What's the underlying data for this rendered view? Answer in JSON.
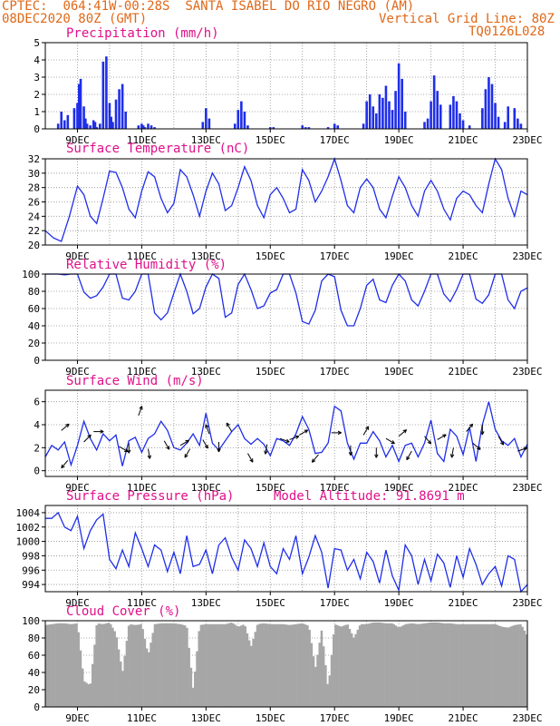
{
  "header": {
    "line1_left": "CPTEC:",
    "coords": "064:41W-00:28S",
    "station": "SANTA ISABEL DO RIO NEGRO (AM)",
    "date": "08DEC2020 80Z (GMT)",
    "grid_note": "Vertical Grid Line: 80Z",
    "code": "TQ0126L028"
  },
  "colors": {
    "header": "#e06818",
    "panel_title": "#e0108a",
    "series": "#1f2ee8",
    "cloud": "#a6a6a6",
    "grid": "#909090"
  },
  "x_axis": {
    "days_start": 8,
    "days_end": 23,
    "tick_labels": [
      "9DEC",
      "11DEC",
      "13DEC",
      "15DEC",
      "17DEC",
      "19DEC",
      "21DEC",
      "23DEC"
    ]
  },
  "panels": {
    "precip": {
      "title": "Precipitation (mm/h)"
    },
    "temp": {
      "title": "Surface Temperature (nC)"
    },
    "rh": {
      "title": "Relative Humidity (%)"
    },
    "wind": {
      "title": "Surface Wind (m/s)"
    },
    "pres": {
      "title": "Surface Pressure (hPa)",
      "extra": "Model Altitude: 91.8691 m"
    },
    "cloud": {
      "title": "Cloud Cover (%)"
    }
  },
  "chart_data": [
    {
      "name": "precip",
      "type": "bar",
      "title": "Precipitation (mm/h)",
      "ylim": [
        0,
        5
      ],
      "yticks": [
        0,
        1,
        2,
        3,
        4,
        5
      ],
      "grid": true,
      "x": [
        8.4,
        8.5,
        8.6,
        8.7,
        8.9,
        9.0,
        9.05,
        9.1,
        9.2,
        9.25,
        9.3,
        9.4,
        9.5,
        9.55,
        9.6,
        9.7,
        9.8,
        9.9,
        10.0,
        10.05,
        10.1,
        10.2,
        10.3,
        10.4,
        10.5,
        10.9,
        11.0,
        11.05,
        11.1,
        11.2,
        11.3,
        11.4,
        12.9,
        13.0,
        13.1,
        13.9,
        14.0,
        14.1,
        14.2,
        14.3,
        15.0,
        15.1,
        16.0,
        16.1,
        16.2,
        16.8,
        17.0,
        17.1,
        17.9,
        18.0,
        18.1,
        18.2,
        18.3,
        18.4,
        18.5,
        18.6,
        18.7,
        18.8,
        18.9,
        19.0,
        19.1,
        19.2,
        19.8,
        19.9,
        20.0,
        20.1,
        20.2,
        20.3,
        20.6,
        20.7,
        20.8,
        20.9,
        21.0,
        21.2,
        21.6,
        21.7,
        21.8,
        21.9,
        22.0,
        22.1,
        22.3,
        22.4,
        22.6,
        22.7,
        22.8
      ],
      "y": [
        0.3,
        1.0,
        0.5,
        0.8,
        1.2,
        1.5,
        2.6,
        2.9,
        1.3,
        0.6,
        0.3,
        0.2,
        0.5,
        0.4,
        0.1,
        0.3,
        3.9,
        4.2,
        1.5,
        0.7,
        0.4,
        1.7,
        2.3,
        2.6,
        1.0,
        0.2,
        0.3,
        0.2,
        0.1,
        0.3,
        0.2,
        0.1,
        0.4,
        1.2,
        0.6,
        0.3,
        1.1,
        1.6,
        1.0,
        0.2,
        0.1,
        0.1,
        0.2,
        0.1,
        0.1,
        0.1,
        0.3,
        0.2,
        0.3,
        1.6,
        2.0,
        1.3,
        0.9,
        2.0,
        1.8,
        2.5,
        1.6,
        1.1,
        2.2,
        3.8,
        2.9,
        1.0,
        0.4,
        0.6,
        1.6,
        3.1,
        2.2,
        1.4,
        1.4,
        1.9,
        1.6,
        0.9,
        0.5,
        0.2,
        1.2,
        2.3,
        3.0,
        2.6,
        1.5,
        0.7,
        0.4,
        1.3,
        1.2,
        0.6,
        0.3
      ]
    },
    {
      "name": "temp",
      "type": "line",
      "title": "Surface Temperature (nC)",
      "ylim": [
        20,
        32
      ],
      "yticks": [
        20,
        22,
        24,
        26,
        28,
        30,
        32
      ],
      "grid": true,
      "x": [
        8.0,
        8.25,
        8.5,
        8.75,
        9.0,
        9.2,
        9.4,
        9.6,
        9.8,
        10.0,
        10.2,
        10.4,
        10.6,
        10.8,
        11.0,
        11.2,
        11.4,
        11.6,
        11.8,
        12.0,
        12.2,
        12.4,
        12.6,
        12.8,
        13.0,
        13.2,
        13.4,
        13.6,
        13.8,
        14.0,
        14.2,
        14.4,
        14.6,
        14.8,
        15.0,
        15.2,
        15.4,
        15.6,
        15.8,
        16.0,
        16.2,
        16.4,
        16.6,
        16.8,
        17.0,
        17.2,
        17.4,
        17.6,
        17.8,
        18.0,
        18.2,
        18.4,
        18.6,
        18.8,
        19.0,
        19.2,
        19.4,
        19.6,
        19.8,
        20.0,
        20.2,
        20.4,
        20.6,
        20.8,
        21.0,
        21.2,
        21.4,
        21.6,
        21.8,
        22.0,
        22.2,
        22.4,
        22.6,
        22.8,
        23.0
      ],
      "y": [
        22.0,
        21.0,
        20.5,
        24.0,
        28.2,
        27.0,
        24.0,
        23.0,
        26.5,
        30.3,
        30.1,
        28.0,
        25.0,
        23.8,
        27.5,
        30.2,
        29.5,
        26.5,
        24.5,
        25.8,
        30.5,
        29.5,
        27.0,
        24.0,
        27.5,
        30.0,
        28.5,
        24.8,
        25.5,
        28.0,
        30.9,
        29.0,
        25.5,
        23.8,
        27.0,
        28.0,
        26.5,
        24.5,
        25.0,
        30.5,
        29.0,
        26.0,
        27.5,
        29.5,
        32.0,
        29.0,
        25.5,
        24.5,
        28.0,
        29.2,
        28.0,
        25.0,
        23.8,
        26.8,
        29.5,
        28.0,
        25.5,
        24.0,
        27.5,
        29.0,
        27.5,
        25.0,
        23.5,
        26.5,
        27.5,
        27.0,
        25.5,
        24.5,
        28.5,
        32.0,
        30.5,
        26.5,
        24.0,
        27.5,
        27.0
      ]
    },
    {
      "name": "rh",
      "type": "line",
      "title": "Relative Humidity (%)",
      "ylim": [
        0,
        100
      ],
      "yticks": [
        0,
        20,
        40,
        60,
        80,
        100
      ],
      "grid": true,
      "x": [
        8.0,
        8.2,
        8.4,
        8.6,
        8.8,
        9.0,
        9.2,
        9.4,
        9.6,
        9.8,
        10.0,
        10.2,
        10.4,
        10.6,
        10.8,
        11.0,
        11.2,
        11.4,
        11.6,
        11.8,
        12.0,
        12.2,
        12.4,
        12.6,
        12.8,
        13.0,
        13.2,
        13.4,
        13.6,
        13.8,
        14.0,
        14.2,
        14.4,
        14.6,
        14.8,
        15.0,
        15.2,
        15.4,
        15.6,
        15.8,
        16.0,
        16.2,
        16.4,
        16.6,
        16.8,
        17.0,
        17.2,
        17.4,
        17.6,
        17.8,
        18.0,
        18.2,
        18.4,
        18.6,
        18.8,
        19.0,
        19.2,
        19.4,
        19.6,
        19.8,
        20.0,
        20.2,
        20.4,
        20.6,
        20.8,
        21.0,
        21.2,
        21.4,
        21.6,
        21.8,
        22.0,
        22.2,
        22.4,
        22.6,
        22.8,
        23.0
      ],
      "y": [
        100,
        100,
        100,
        99,
        100,
        100,
        79,
        72,
        75,
        85,
        100,
        100,
        72,
        70,
        80,
        100,
        100,
        55,
        47,
        55,
        78,
        100,
        80,
        54,
        60,
        85,
        100,
        95,
        50,
        55,
        88,
        100,
        82,
        60,
        63,
        78,
        82,
        100,
        100,
        78,
        45,
        42,
        58,
        92,
        100,
        97,
        58,
        40,
        40,
        60,
        87,
        94,
        70,
        67,
        87,
        100,
        92,
        70,
        63,
        80,
        100,
        100,
        77,
        68,
        82,
        100,
        100,
        71,
        66,
        76,
        100,
        100,
        70,
        60,
        80,
        84
      ]
    },
    {
      "name": "wind",
      "type": "line",
      "title": "Surface Wind (m/s)",
      "ylim": [
        -0.5,
        7
      ],
      "yticks": [
        0,
        2,
        4,
        6
      ],
      "grid": true,
      "x": [
        8.0,
        8.2,
        8.4,
        8.6,
        8.8,
        9.0,
        9.2,
        9.4,
        9.6,
        9.8,
        10.0,
        10.2,
        10.4,
        10.6,
        10.8,
        11.0,
        11.2,
        11.4,
        11.6,
        11.8,
        12.0,
        12.2,
        12.4,
        12.6,
        12.8,
        13.0,
        13.2,
        13.4,
        13.6,
        13.8,
        14.0,
        14.2,
        14.4,
        14.6,
        14.8,
        15.0,
        15.2,
        15.4,
        15.6,
        15.8,
        16.0,
        16.2,
        16.4,
        16.6,
        16.8,
        17.0,
        17.2,
        17.4,
        17.6,
        17.8,
        18.0,
        18.2,
        18.4,
        18.6,
        18.8,
        19.0,
        19.2,
        19.4,
        19.6,
        19.8,
        20.0,
        20.2,
        20.4,
        20.6,
        20.8,
        21.0,
        21.2,
        21.4,
        21.6,
        21.8,
        22.0,
        22.2,
        22.4,
        22.6,
        22.8,
        23.0
      ],
      "y": [
        1.2,
        2.2,
        1.8,
        2.5,
        0.5,
        2.2,
        4.3,
        2.8,
        1.8,
        3.2,
        2.6,
        3.1,
        0.4,
        2.6,
        2.9,
        1.6,
        2.8,
        3.2,
        4.3,
        3.5,
        2.0,
        1.8,
        2.4,
        3.2,
        2.2,
        5.0,
        2.4,
        1.8,
        2.6,
        3.4,
        4.0,
        2.8,
        2.3,
        2.8,
        2.3,
        1.3,
        2.8,
        2.6,
        2.2,
        3.2,
        4.7,
        3.6,
        1.5,
        1.6,
        2.4,
        5.6,
        5.2,
        2.4,
        1.0,
        2.4,
        2.4,
        3.4,
        2.6,
        1.2,
        2.2,
        0.8,
        2.2,
        2.4,
        1.2,
        2.4,
        4.4,
        1.5,
        0.8,
        3.6,
        3.0,
        1.4,
        3.8,
        0.8,
        4.0,
        6.0,
        3.6,
        2.6,
        2.2,
        2.8,
        1.2,
        2.3
      ],
      "vectors": [
        [
          8.5,
          3.5,
          40
        ],
        [
          8.7,
          0.9,
          -130
        ],
        [
          9.2,
          2.5,
          45
        ],
        [
          9.5,
          3.4,
          0
        ],
        [
          10.3,
          2.1,
          -30
        ],
        [
          10.6,
          2.4,
          -90
        ],
        [
          10.9,
          4.8,
          70
        ],
        [
          11.2,
          1.9,
          -80
        ],
        [
          11.7,
          2.6,
          -60
        ],
        [
          12.2,
          2.2,
          30
        ],
        [
          12.5,
          1.9,
          -120
        ],
        [
          12.9,
          2.7,
          -60
        ],
        [
          13.1,
          3.2,
          110
        ],
        [
          13.4,
          2.5,
          -90
        ],
        [
          13.8,
          3.4,
          120
        ],
        [
          14.3,
          1.5,
          -60
        ],
        [
          14.9,
          2.3,
          -100
        ],
        [
          15.3,
          2.8,
          -20
        ],
        [
          15.6,
          2.7,
          20
        ],
        [
          15.9,
          3.1,
          30
        ],
        [
          16.5,
          1.4,
          -130
        ],
        [
          16.9,
          3.3,
          0
        ],
        [
          17.5,
          2.2,
          -90
        ],
        [
          17.9,
          3.1,
          60
        ],
        [
          18.3,
          2.0,
          -90
        ],
        [
          18.6,
          2.8,
          -30
        ],
        [
          19.0,
          3.0,
          40
        ],
        [
          19.4,
          1.7,
          -120
        ],
        [
          19.8,
          3.0,
          -50
        ],
        [
          20.2,
          2.7,
          30
        ],
        [
          20.7,
          2.0,
          -100
        ],
        [
          21.1,
          3.4,
          50
        ],
        [
          21.3,
          2.4,
          -40
        ],
        [
          21.6,
          4.0,
          -90
        ],
        [
          22.1,
          3.0,
          -60
        ],
        [
          22.7,
          1.7,
          20
        ]
      ]
    },
    {
      "name": "pres",
      "type": "line",
      "title": "Surface Pressure (hPa)",
      "ylim": [
        993,
        1005
      ],
      "yticks": [
        994,
        996,
        998,
        1000,
        1002,
        1004
      ],
      "grid": true,
      "x": [
        8.0,
        8.2,
        8.4,
        8.6,
        8.8,
        9.0,
        9.2,
        9.4,
        9.6,
        9.8,
        10.0,
        10.2,
        10.4,
        10.6,
        10.8,
        11.0,
        11.2,
        11.4,
        11.6,
        11.8,
        12.0,
        12.2,
        12.4,
        12.6,
        12.8,
        13.0,
        13.2,
        13.4,
        13.6,
        13.8,
        14.0,
        14.2,
        14.4,
        14.6,
        14.8,
        15.0,
        15.2,
        15.4,
        15.6,
        15.8,
        16.0,
        16.2,
        16.4,
        16.6,
        16.8,
        17.0,
        17.2,
        17.4,
        17.6,
        17.8,
        18.0,
        18.2,
        18.4,
        18.6,
        18.8,
        19.0,
        19.2,
        19.4,
        19.6,
        19.8,
        20.0,
        20.2,
        20.4,
        20.6,
        20.8,
        21.0,
        21.2,
        21.4,
        21.6,
        21.8,
        22.0,
        22.2,
        22.4,
        22.6,
        22.8,
        23.0
      ],
      "y": [
        1003.2,
        1003.2,
        1004.0,
        1002.0,
        1001.5,
        1003.5,
        999.0,
        1001.5,
        1003.0,
        1003.8,
        997.5,
        996.2,
        998.8,
        996.5,
        1001.2,
        999.0,
        996.5,
        999.5,
        998.8,
        995.8,
        998.5,
        995.5,
        1000.8,
        996.5,
        996.8,
        998.8,
        995.5,
        999.5,
        1000.5,
        997.8,
        996.0,
        1000.2,
        999.0,
        996.5,
        999.8,
        996.5,
        995.5,
        999.0,
        997.5,
        1000.8,
        995.5,
        997.8,
        1000.8,
        998.5,
        993.5,
        999.0,
        998.8,
        996.0,
        997.5,
        994.8,
        998.5,
        997.2,
        994.2,
        998.8,
        995.2,
        993.2,
        999.5,
        998.0,
        994.0,
        997.5,
        994.5,
        998.2,
        997.0,
        993.6,
        998.0,
        995.0,
        999.0,
        996.8,
        994.0,
        995.5,
        996.5,
        993.8,
        998.0,
        997.5,
        993.0,
        994.0
      ]
    },
    {
      "name": "cloud",
      "type": "area",
      "title": "Cloud Cover (%)",
      "ylim": [
        0,
        100
      ],
      "yticks": [
        0,
        20,
        40,
        60,
        80,
        100
      ],
      "grid": true,
      "x": [
        8.0,
        8.2,
        8.4,
        8.6,
        8.8,
        9.0,
        9.2,
        9.4,
        9.6,
        9.8,
        10.0,
        10.2,
        10.4,
        10.6,
        10.8,
        11.0,
        11.2,
        11.4,
        11.6,
        11.8,
        12.0,
        12.2,
        12.4,
        12.6,
        12.8,
        13.0,
        13.2,
        13.4,
        13.6,
        13.8,
        14.0,
        14.2,
        14.4,
        14.6,
        14.8,
        15.0,
        15.2,
        15.4,
        15.6,
        15.8,
        16.0,
        16.2,
        16.4,
        16.6,
        16.8,
        17.0,
        17.2,
        17.4,
        17.6,
        17.8,
        18.0,
        18.2,
        18.4,
        18.6,
        18.8,
        19.0,
        19.2,
        19.4,
        19.6,
        19.8,
        20.0,
        20.2,
        20.4,
        20.6,
        20.8,
        21.0,
        21.2,
        21.4,
        21.6,
        21.8,
        22.0,
        22.2,
        22.4,
        22.6,
        22.8,
        23.0
      ],
      "y": [
        95,
        96,
        97,
        97,
        96,
        97,
        30,
        25,
        97,
        96,
        98,
        85,
        40,
        96,
        95,
        96,
        60,
        96,
        97,
        97,
        97,
        96,
        94,
        20,
        95,
        96,
        96,
        96,
        96,
        98,
        93,
        96,
        70,
        96,
        97,
        96,
        96,
        96,
        95,
        96,
        97,
        94,
        45,
        90,
        20,
        96,
        93,
        96,
        80,
        96,
        96,
        98,
        98,
        97,
        97,
        92,
        96,
        97,
        96,
        97,
        98,
        98,
        97,
        97,
        96,
        96,
        96,
        96,
        96,
        96,
        96,
        93,
        92,
        95,
        96,
        82
      ]
    }
  ]
}
